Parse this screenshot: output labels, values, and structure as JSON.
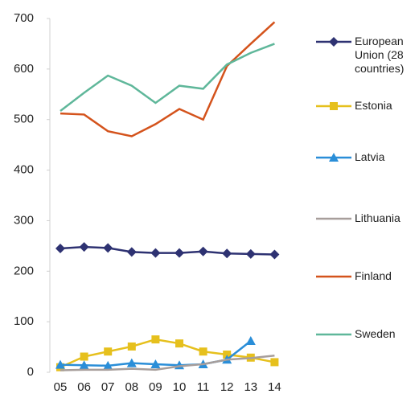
{
  "chart_data": {
    "type": "line",
    "categories": [
      "05",
      "06",
      "07",
      "08",
      "09",
      "10",
      "11",
      "12",
      "13",
      "14"
    ],
    "series": [
      {
        "name": "European Union (28 countries)",
        "color": "#2e3272",
        "marker": "diamond",
        "values": [
          245,
          248,
          246,
          238,
          236,
          236,
          239,
          235,
          234,
          233
        ]
      },
      {
        "name": "Estonia",
        "color": "#e6c01d",
        "marker": "square",
        "values": [
          10,
          31,
          41,
          51,
          65,
          57,
          41,
          35,
          29,
          20
        ]
      },
      {
        "name": "Latvia",
        "color": "#2a8ed8",
        "marker": "triangle",
        "values": [
          15,
          14,
          13,
          18,
          16,
          14,
          16,
          25,
          62,
          null
        ]
      },
      {
        "name": "Lithuania",
        "color": "#a79e9b",
        "marker": "none",
        "values": [
          4,
          5,
          5,
          7,
          5,
          12,
          16,
          25,
          28,
          33
        ]
      },
      {
        "name": "Finland",
        "color": "#d4531c",
        "marker": "none",
        "values": [
          512,
          510,
          477,
          467,
          491,
          521,
          500,
          606,
          650,
          693
        ]
      },
      {
        "name": "Sweden",
        "color": "#5fb79a",
        "marker": "none",
        "values": [
          517,
          553,
          587,
          567,
          533,
          567,
          561,
          609,
          632,
          650
        ]
      }
    ],
    "ylim": [
      0,
      700
    ],
    "yticks": [
      0,
      100,
      200,
      300,
      400,
      500,
      600,
      700
    ],
    "grid": false,
    "legend": "right"
  }
}
